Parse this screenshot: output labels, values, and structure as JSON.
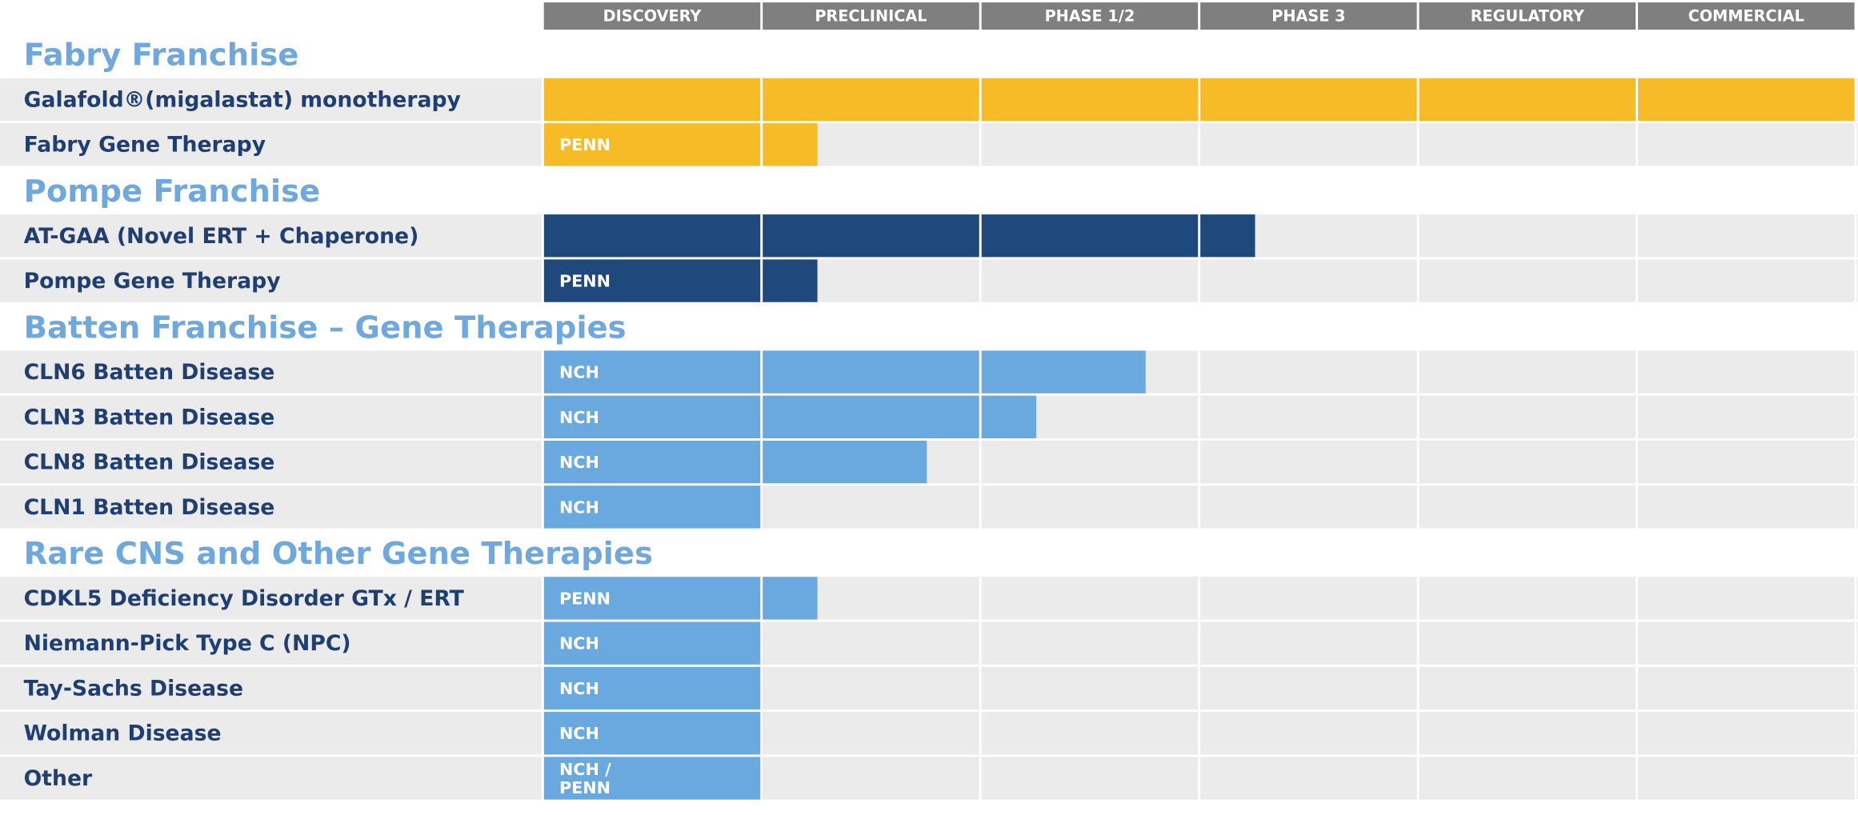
{
  "chart_data": {
    "type": "pipeline",
    "phases": [
      "DISCOVERY",
      "PRECLINICAL",
      "PHASE 1/2",
      "PHASE 3",
      "REGULATORY",
      "COMMERCIAL"
    ],
    "sections": [
      {
        "title": "Fabry Franchise",
        "color": "#f6bb26",
        "programs": [
          {
            "name": "Galafold®(migalastat) monotherapy",
            "progress": 6
          },
          {
            "name": "Fabry Gene Therapy",
            "partner": "PENN",
            "progress": 1.25
          }
        ]
      },
      {
        "title": "Pompe Franchise",
        "color": "#1f497d",
        "programs": [
          {
            "name": "AT-GAA (Novel ERT + Chaperone)",
            "progress": 3.25
          },
          {
            "name": "Pompe Gene Therapy",
            "partner": "PENN",
            "progress": 1.25
          }
        ]
      },
      {
        "title": "Batten Franchise – Gene Therapies",
        "color": "#6aa8e0",
        "programs": [
          {
            "name": "CLN6 Batten Disease",
            "partner": "NCH",
            "progress": 2.75
          },
          {
            "name": "CLN3 Batten Disease",
            "partner": "NCH",
            "progress": 2.25
          },
          {
            "name": "CLN8 Batten Disease",
            "partner": "NCH",
            "progress": 1.75
          },
          {
            "name": "CLN1 Batten Disease",
            "partner": "NCH",
            "progress": 1
          }
        ]
      },
      {
        "title": "Rare CNS and Other Gene Therapies",
        "color": "#6aa8e0",
        "programs": [
          {
            "name": "CDKL5 Deficiency Disorder GTx / ERT",
            "partner": "PENN",
            "progress": 1.25
          },
          {
            "name": "Niemann-Pick Type C (NPC)",
            "partner": "NCH",
            "progress": 1
          },
          {
            "name": "Tay-Sachs Disease",
            "partner": "NCH",
            "progress": 1
          },
          {
            "name": "Wolman Disease",
            "partner": "NCH",
            "progress": 1
          },
          {
            "name": "Other",
            "partner": "NCH /\nPENN",
            "progress": 1
          }
        ]
      }
    ]
  }
}
